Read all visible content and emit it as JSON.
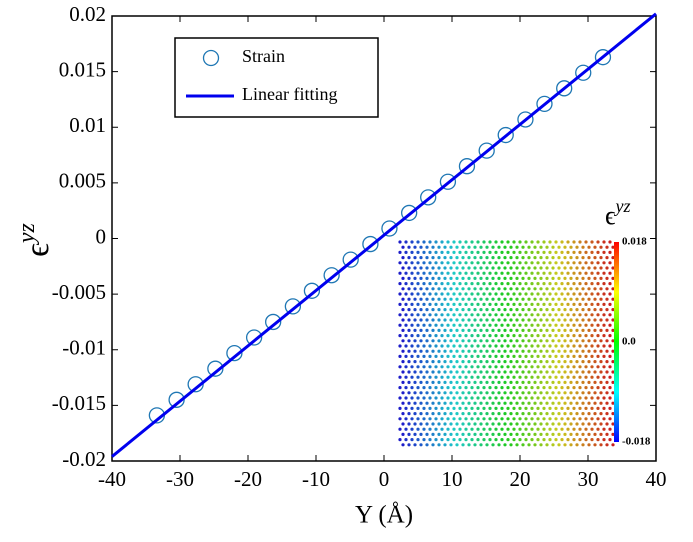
{
  "chart_data": {
    "type": "scatter",
    "y_label": "ϵ",
    "y_label_sup": "yz",
    "x_label": "Y (Å)",
    "xlim": [
      -40,
      40
    ],
    "xticks": [
      -40,
      -30,
      -20,
      -10,
      0,
      10,
      20,
      30,
      40
    ],
    "ylim": [
      -0.02,
      0.02
    ],
    "yticks": [
      -0.02,
      -0.015,
      -0.01,
      -0.005,
      0,
      0.005,
      0.01,
      0.015,
      0.02
    ],
    "series": [
      {
        "name": "Strain",
        "color": "#1f77b4",
        "marker": "circle",
        "x": [
          -33.4,
          -30.5,
          -27.7,
          -24.8,
          -22.0,
          -19.1,
          -16.3,
          -13.4,
          -10.6,
          -7.7,
          -4.9,
          -2.0,
          0.8,
          3.7,
          6.5,
          9.4,
          12.2,
          15.1,
          17.9,
          20.8,
          23.6,
          26.5,
          29.3,
          32.2
        ],
        "values": [
          -0.0159,
          -0.0145,
          -0.0131,
          -0.0117,
          -0.0103,
          -0.0089,
          -0.0075,
          -0.0061,
          -0.0047,
          -0.0033,
          -0.0019,
          -0.0005,
          0.0009,
          0.0023,
          0.0037,
          0.0051,
          0.0065,
          0.0079,
          0.0093,
          0.0107,
          0.0121,
          0.0135,
          0.0149,
          0.0163
        ]
      },
      {
        "name": "Linear fitting",
        "color": "#0000ee",
        "marker": "line",
        "x": [
          -40,
          40
        ],
        "values": [
          -0.0196,
          0.0202
        ]
      }
    ],
    "inset": {
      "title": "ϵ",
      "title_sup": "yz",
      "colorbar_ticks": [
        0.018,
        {
          "value": 0,
          "label": "0.0"
        },
        -0.018
      ]
    }
  }
}
